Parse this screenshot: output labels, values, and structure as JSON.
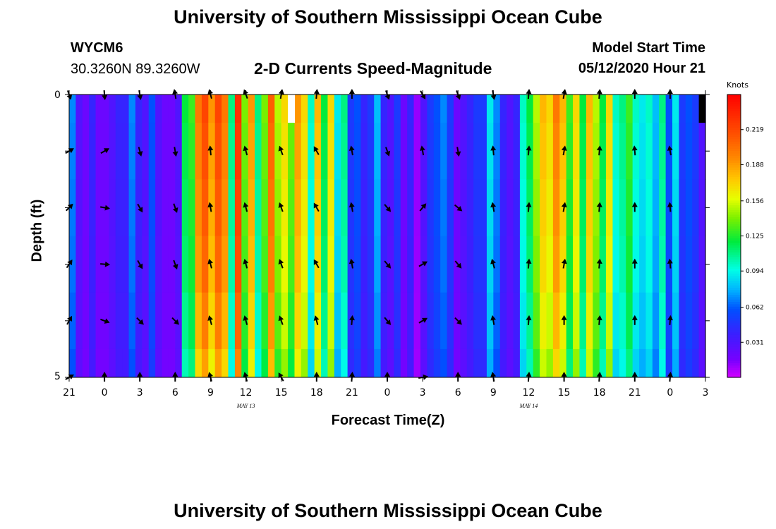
{
  "header": {
    "title_top": "University of Southern Mississippi Ocean Cube",
    "title_bottom": "University of Southern Mississippi Ocean Cube",
    "station_id": "WYCM6",
    "station_coords": "30.3260N 89.3260W",
    "subtitle": "2-D Currents Speed-Magnitude",
    "model_start_label": "Model Start Time",
    "model_start_value": "05/12/2020 Hour 21"
  },
  "chart_data": {
    "type": "heatmap",
    "title": "2-D Currents Speed-Magnitude",
    "xlabel": "Forecast Time(Z)",
    "ylabel": "Depth (ft)",
    "x_tick_labels": [
      "21",
      "0",
      "3",
      "6",
      "9",
      "12",
      "15",
      "18",
      "21",
      "0",
      "3",
      "6",
      "9",
      "12",
      "15",
      "18",
      "21",
      "0",
      "3"
    ],
    "x_hours": [
      0,
      3,
      6,
      9,
      12,
      15,
      18,
      21,
      24,
      27,
      30,
      33,
      36,
      39,
      42,
      45,
      48,
      51,
      54
    ],
    "date_labels": [
      {
        "hour": 15,
        "text": "MAY  13"
      },
      {
        "hour": 39,
        "text": "MAY  14"
      }
    ],
    "y_range": [
      0,
      5
    ],
    "y_tick_labels": [
      "0",
      "5"
    ],
    "colorbar": {
      "unit": "Knots",
      "range": [
        0.0,
        0.25
      ],
      "ticks": [
        "0.219",
        "0.188",
        "0.156",
        "0.125",
        "0.094",
        "0.062",
        "0.031"
      ]
    },
    "speed_by_hour_knots": [
      0.07,
      0.03,
      0.02,
      0.04,
      0.02,
      0.02,
      0.03,
      0.04,
      0.04,
      0.07,
      0.04,
      0.03,
      0.06,
      0.03,
      0.02,
      0.02,
      0.03,
      0.12,
      0.13,
      0.2,
      0.22,
      0.19,
      0.22,
      0.2,
      0.11,
      0.23,
      0.14,
      0.19,
      0.11,
      0.14,
      0.21,
      0.15,
      0.17,
      0.14,
      0.19,
      0.17,
      0.1,
      0.18,
      0.12,
      0.17,
      0.09,
      0.11,
      0.05,
      0.06,
      0.04,
      0.05,
      0.08,
      0.04,
      0.03,
      0.05,
      0.02,
      0.04,
      0.01,
      0.03,
      0.05,
      0.06,
      0.07,
      0.05,
      0.02,
      0.03,
      0.04,
      0.05,
      0.05,
      0.09,
      0.07,
      0.04,
      0.03,
      0.04,
      0.1,
      0.12,
      0.15,
      0.18,
      0.17,
      0.2,
      0.18,
      0.13,
      0.17,
      0.12,
      0.18,
      0.15,
      0.12,
      0.17,
      0.1,
      0.11,
      0.13,
      0.1,
      0.09,
      0.1,
      0.08,
      0.11,
      0.06,
      0.09,
      0.05,
      0.06,
      0.05,
      0.03
    ],
    "depth_layers_ft": [
      0,
      0.5,
      1.5,
      2.5,
      3.5,
      4.5
    ],
    "depth_factors": [
      1.0,
      0.98,
      0.96,
      0.94,
      0.9,
      0.85
    ],
    "vector_hours": [
      0,
      3,
      6,
      9,
      12,
      15,
      18,
      21,
      24,
      27,
      30,
      33,
      36,
      39,
      42,
      45,
      48,
      51
    ],
    "vector_depths_ft": [
      0,
      1,
      2,
      3,
      4,
      5
    ],
    "vector_directions_deg": [
      [
        160,
        175,
        170,
        350,
        345,
        340,
        10,
        5,
        0,
        160,
        150,
        160,
        170,
        5,
        10,
        5,
        0,
        0
      ],
      [
        60,
        60,
        165,
        170,
        355,
        345,
        340,
        330,
        350,
        160,
        350,
        170,
        355,
        5,
        10,
        5,
        355,
        350
      ],
      [
        45,
        100,
        150,
        160,
        350,
        345,
        340,
        330,
        350,
        140,
        40,
        130,
        350,
        5,
        10,
        5,
        0,
        355
      ],
      [
        35,
        95,
        150,
        160,
        345,
        345,
        340,
        330,
        350,
        140,
        60,
        140,
        345,
        5,
        10,
        5,
        0,
        355
      ],
      [
        30,
        110,
        135,
        135,
        345,
        345,
        340,
        345,
        5,
        140,
        60,
        135,
        350,
        5,
        0,
        5,
        0,
        5
      ],
      [
        60,
        0,
        0,
        0,
        345,
        345,
        330,
        0,
        5,
        0,
        80,
        0,
        350,
        5,
        0,
        5,
        0,
        5
      ]
    ],
    "missing_cells": [
      {
        "hour_index": 33,
        "depth_from_ft": 0,
        "depth_to_ft": 0.5,
        "fill": "#ffffff"
      },
      {
        "hour_index": 95,
        "depth_from_ft": 0,
        "depth_to_ft": 0.5,
        "fill": "#000000"
      }
    ]
  },
  "colors": {
    "background": "#ffffff",
    "frame": "#000000"
  }
}
